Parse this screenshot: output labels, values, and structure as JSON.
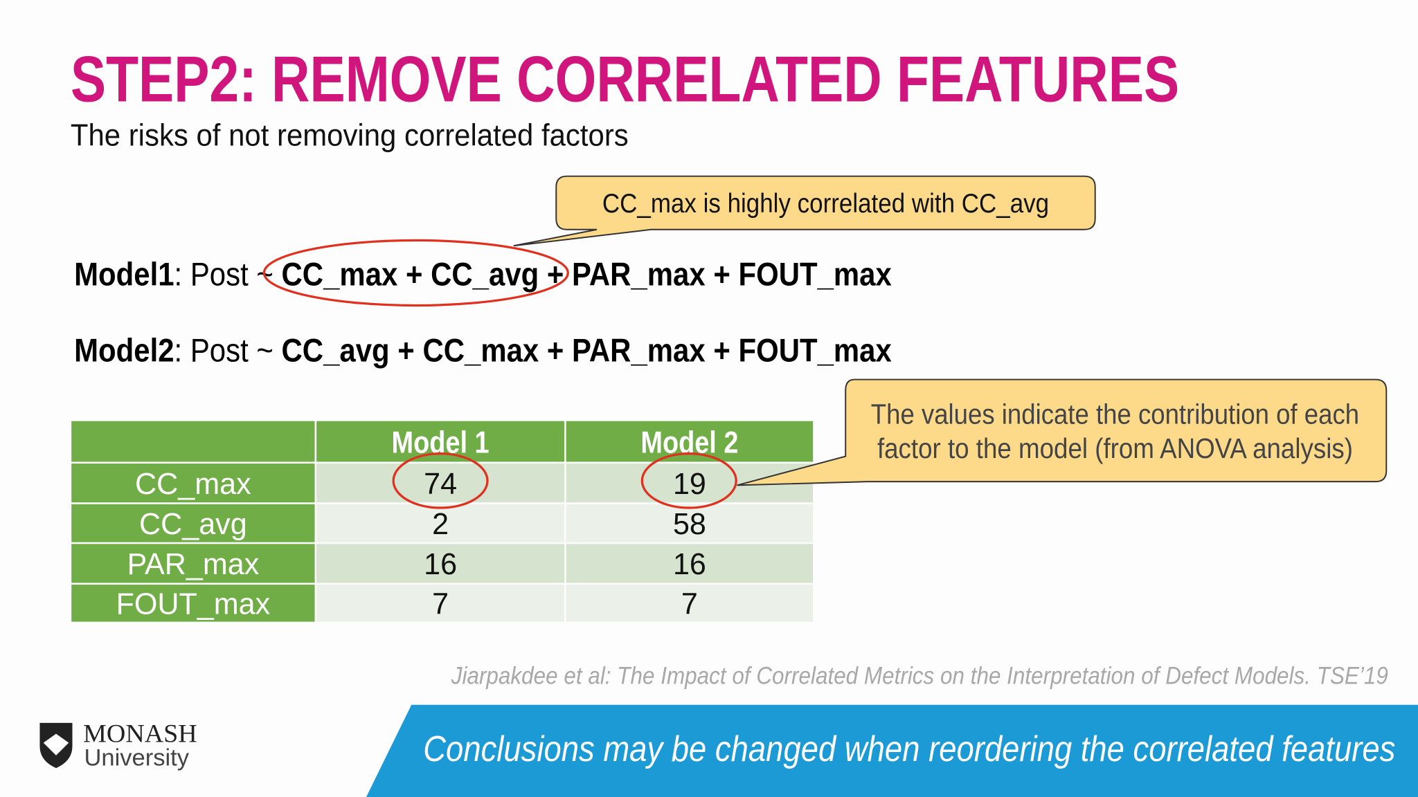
{
  "header": {
    "title": "STEP2: REMOVE CORRELATED FEATURES",
    "subtitle": "The risks of not removing correlated factors"
  },
  "callouts": [
    {
      "lines": [
        "CC_max is highly correlated with CC_avg"
      ]
    },
    {
      "lines": [
        "The values indicate the contribution of each",
        "factor to the model (from ANOVA analysis)"
      ]
    }
  ],
  "models": [
    {
      "name": "Model1",
      "prefix": ": Post ~ ",
      "formula": "CC_max + CC_avg + PAR_max + FOUT_max"
    },
    {
      "name": "Model2",
      "prefix": ": Post ~ ",
      "formula": "CC_avg + CC_max + PAR_max + FOUT_max"
    }
  ],
  "table": {
    "columns": [
      "Model 1",
      "Model 2"
    ],
    "rows": [
      {
        "label": "CC_max",
        "values": [
          74,
          19
        ]
      },
      {
        "label": "CC_avg",
        "values": [
          2,
          58
        ]
      },
      {
        "label": "PAR_max",
        "values": [
          16,
          16
        ]
      },
      {
        "label": "FOUT_max",
        "values": [
          7,
          7
        ]
      }
    ]
  },
  "citation": "Jiarpakdee et al: The Impact of Correlated Metrics on the Interpretation of Defect Models. TSE’19",
  "banner": "Conclusions may be changed when reordering the correlated features",
  "logo": {
    "name": "MONASH",
    "subname": "University"
  }
}
